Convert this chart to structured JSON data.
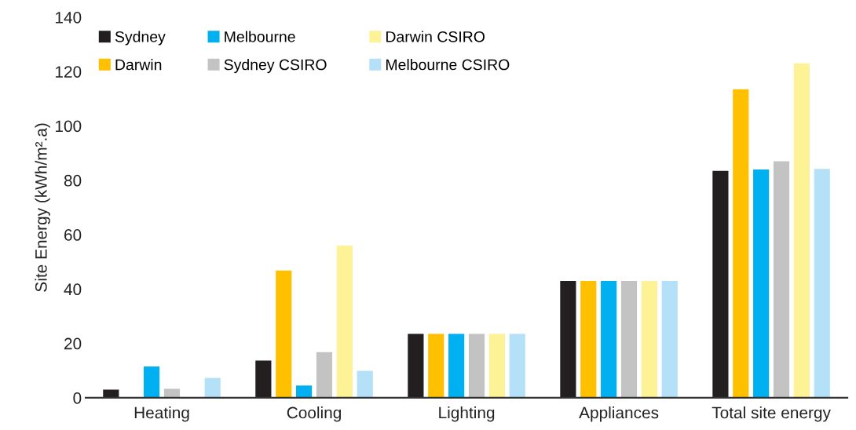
{
  "chart_data": {
    "type": "bar",
    "ylabel": "Site Energy (kWh/m².a)",
    "categories": [
      "Heating",
      "Cooling",
      "Lighting",
      "Appliances",
      "Total site energy"
    ],
    "series": [
      {
        "name": "Sydney",
        "color": "#231f20",
        "values": [
          3,
          13.7,
          23.5,
          43,
          83.5
        ]
      },
      {
        "name": "Darwin",
        "color": "#ffc000",
        "values": [
          0,
          46.8,
          23.5,
          43,
          113.5
        ]
      },
      {
        "name": "Melbourne",
        "color": "#00b0f0",
        "values": [
          11.5,
          4.5,
          23.5,
          43,
          84
        ]
      },
      {
        "name": "Sydney CSIRO",
        "color": "#c3c3c3",
        "values": [
          3.3,
          16.8,
          23.5,
          43,
          87
        ]
      },
      {
        "name": "Darwin CSIRO",
        "color": "#fdf296",
        "values": [
          0,
          56,
          23.5,
          43,
          123
        ]
      },
      {
        "name": "Melbourne CSIRO",
        "color": "#b4e1f8",
        "values": [
          7.3,
          9.9,
          23.5,
          43,
          84.2
        ]
      }
    ],
    "ylim": [
      0,
      140
    ],
    "yticks": [
      0,
      20,
      40,
      60,
      80,
      100,
      120,
      140
    ],
    "grid": false,
    "legend": "top left"
  }
}
